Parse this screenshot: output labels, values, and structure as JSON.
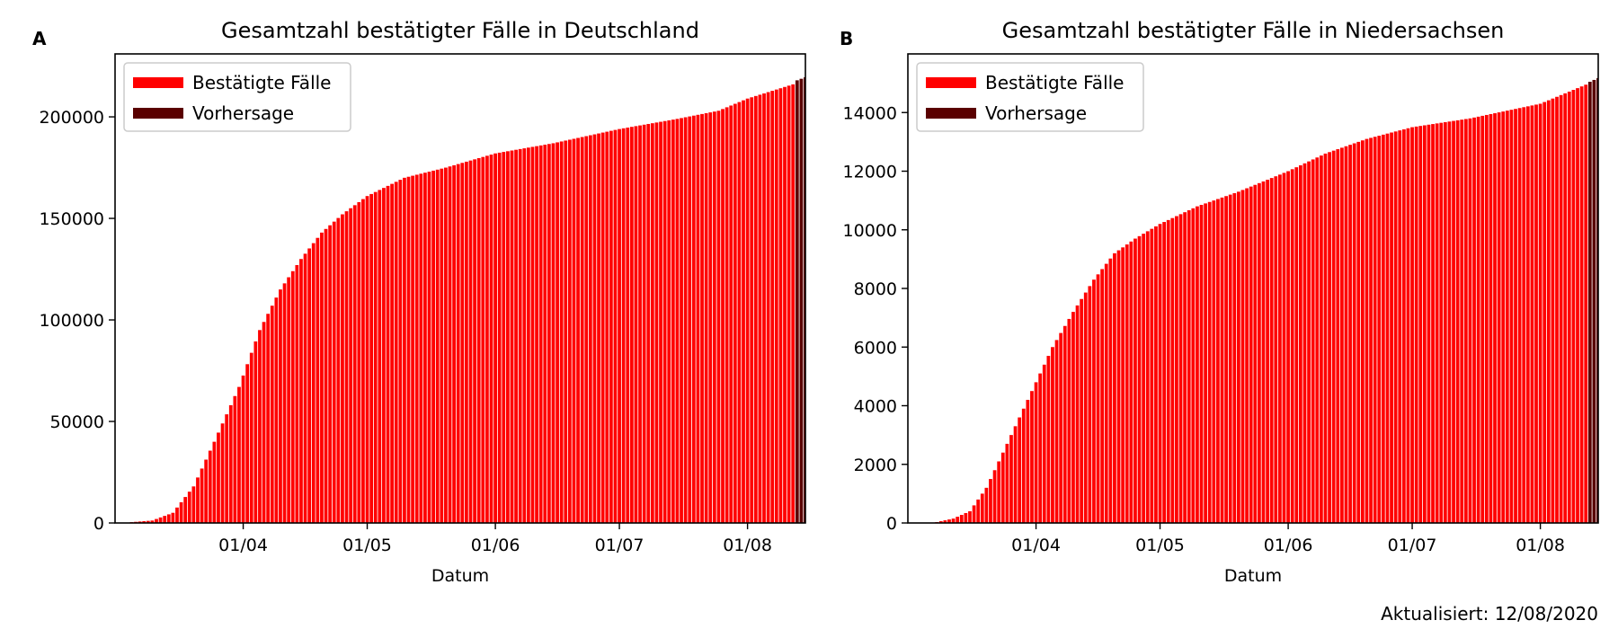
{
  "colors": {
    "confirmed": "#ff0000",
    "forecast": "#5a0000"
  },
  "footer_text": "Aktualisiert: 12/08/2020",
  "chart_data": [
    {
      "type": "bar",
      "panel_letter": "A",
      "title": "Gesamtzahl bestätigter Fälle in Deutschland",
      "xlabel": "Datum",
      "ylabel": "",
      "x_ticks": [
        "01/04",
        "01/05",
        "01/06",
        "01/07",
        "01/08"
      ],
      "y_ticks": [
        "0",
        "50000",
        "100000",
        "150000",
        "200000"
      ],
      "y_tick_values": [
        0,
        50000,
        100000,
        150000,
        200000
      ],
      "ylim": [
        0,
        231000
      ],
      "xlim": [
        "2020-03-01",
        "2020-08-15"
      ],
      "legend": [
        "Bestätigte Fälle",
        "Vorhersage"
      ],
      "legend_position": "top-left",
      "series": [
        {
          "name": "Bestätigte Fälle",
          "x_start": "2020-03-05",
          "x_end": "2020-08-12",
          "anchors": [
            [
              "2020-03-05",
              400
            ],
            [
              "2020-03-10",
              1200
            ],
            [
              "2020-03-15",
              5000
            ],
            [
              "2020-03-20",
              18000
            ],
            [
              "2020-03-25",
              40000
            ],
            [
              "2020-03-31",
              67000
            ],
            [
              "2020-04-05",
              95000
            ],
            [
              "2020-04-10",
              115000
            ],
            [
              "2020-04-15",
              130000
            ],
            [
              "2020-04-20",
              143000
            ],
            [
              "2020-04-25",
              152000
            ],
            [
              "2020-05-01",
              161000
            ],
            [
              "2020-05-10",
              170000
            ],
            [
              "2020-05-20",
              175000
            ],
            [
              "2020-06-01",
              182000
            ],
            [
              "2020-06-15",
              187000
            ],
            [
              "2020-07-01",
              194000
            ],
            [
              "2020-07-15",
              199000
            ],
            [
              "2020-07-25",
              203000
            ],
            [
              "2020-08-01",
              209000
            ],
            [
              "2020-08-12",
              216000
            ]
          ]
        },
        {
          "name": "Vorhersage",
          "x_start": "2020-08-13",
          "x_end": "2020-08-17",
          "anchors": [
            [
              "2020-08-13",
              218000
            ],
            [
              "2020-08-17",
              221000
            ]
          ]
        }
      ]
    },
    {
      "type": "bar",
      "panel_letter": "B",
      "title": "Gesamtzahl bestätigter Fälle in Niedersachsen",
      "xlabel": "Datum",
      "ylabel": "",
      "x_ticks": [
        "01/04",
        "01/05",
        "01/06",
        "01/07",
        "01/08"
      ],
      "y_ticks": [
        "0",
        "2000",
        "4000",
        "6000",
        "8000",
        "10000",
        "12000",
        "14000"
      ],
      "y_tick_values": [
        0,
        2000,
        4000,
        6000,
        8000,
        10000,
        12000,
        14000
      ],
      "ylim": [
        0,
        16000
      ],
      "xlim": [
        "2020-03-01",
        "2020-08-15"
      ],
      "legend": [
        "Bestätigte Fälle",
        "Vorhersage"
      ],
      "legend_position": "top-left",
      "series": [
        {
          "name": "Bestätigte Fälle",
          "x_start": "2020-03-08",
          "x_end": "2020-08-12",
          "anchors": [
            [
              "2020-03-08",
              30
            ],
            [
              "2020-03-12",
              150
            ],
            [
              "2020-03-16",
              400
            ],
            [
              "2020-03-20",
              1200
            ],
            [
              "2020-03-25",
              2700
            ],
            [
              "2020-03-31",
              4500
            ],
            [
              "2020-04-05",
              6000
            ],
            [
              "2020-04-10",
              7200
            ],
            [
              "2020-04-15",
              8300
            ],
            [
              "2020-04-20",
              9200
            ],
            [
              "2020-04-25",
              9700
            ],
            [
              "2020-05-01",
              10200
            ],
            [
              "2020-05-10",
              10800
            ],
            [
              "2020-05-20",
              11300
            ],
            [
              "2020-06-01",
              12000
            ],
            [
              "2020-06-10",
              12600
            ],
            [
              "2020-06-20",
              13100
            ],
            [
              "2020-07-01",
              13500
            ],
            [
              "2020-07-15",
              13800
            ],
            [
              "2020-08-01",
              14300
            ],
            [
              "2020-08-12",
              14950
            ]
          ]
        },
        {
          "name": "Vorhersage",
          "x_start": "2020-08-13",
          "x_end": "2020-08-17",
          "anchors": [
            [
              "2020-08-13",
              15050
            ],
            [
              "2020-08-17",
              15300
            ]
          ]
        }
      ]
    }
  ]
}
